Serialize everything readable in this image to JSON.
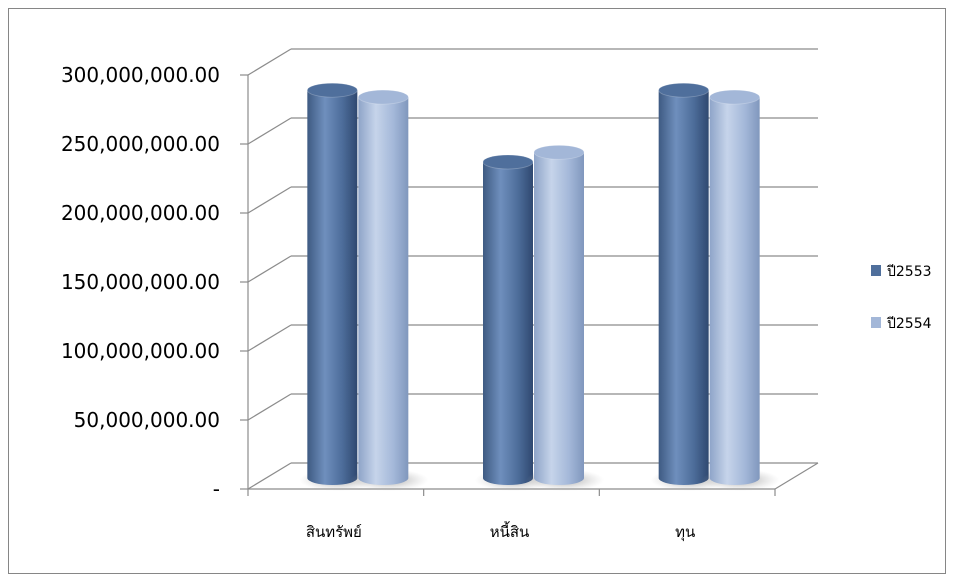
{
  "chart_data": {
    "type": "bar",
    "variant": "3d-cylinder",
    "title": "",
    "xlabel": "",
    "ylabel": "",
    "categories": [
      "สินทรัพย์",
      "หนี้สิน",
      "ทุน"
    ],
    "series": [
      {
        "name": "ปี2553",
        "color": "#4f6f9c",
        "values": [
          281000000,
          229000000,
          281000000
        ]
      },
      {
        "name": "ปี2554",
        "color": "#a3b7d8",
        "values": [
          276000000,
          236000000,
          276000000
        ]
      }
    ],
    "ylim": [
      0,
      300000000
    ],
    "yticks": [
      {
        "value": 0,
        "label": "-"
      },
      {
        "value": 50000000,
        "label": "50,000,000.00"
      },
      {
        "value": 100000000,
        "label": "100,000,000.00"
      },
      {
        "value": 150000000,
        "label": "150,000,000.00"
      },
      {
        "value": 200000000,
        "label": "200,000,000.00"
      },
      {
        "value": 250000000,
        "label": "250,000,000.00"
      },
      {
        "value": 300000000,
        "label": "300,000,000.00"
      }
    ],
    "grid": true,
    "legend_position": "right"
  }
}
